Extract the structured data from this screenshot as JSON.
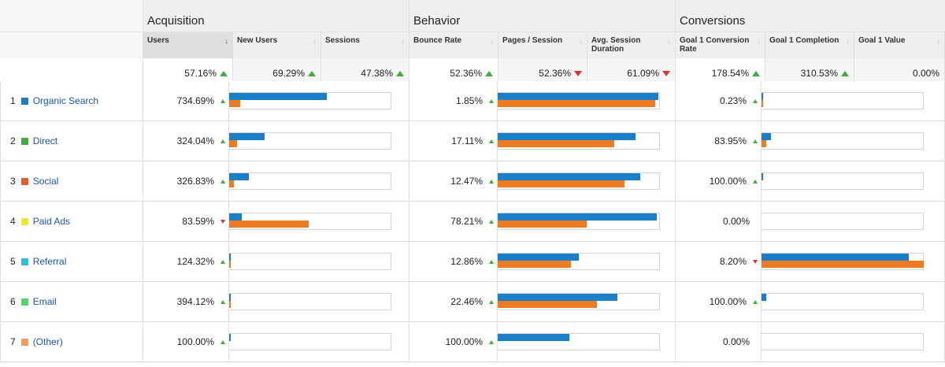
{
  "groups": [
    "",
    "Acquisition",
    "Behavior",
    "Conversions"
  ],
  "columns": [
    {
      "label": "Users",
      "sorted": true,
      "sort_icon": "sort-desc-icon"
    },
    {
      "label": "New Users",
      "sorted": false,
      "sort_icon": "sort-icon"
    },
    {
      "label": "Sessions",
      "sorted": false,
      "sort_icon": "sort-icon"
    },
    {
      "label": "Bounce Rate",
      "sorted": false,
      "sort_icon": "sort-icon"
    },
    {
      "label": "Pages / Session",
      "sorted": false,
      "sort_icon": "sort-icon"
    },
    {
      "label": "Avg. Session Duration",
      "sorted": false,
      "sort_icon": "sort-icon"
    },
    {
      "label": "Goal 1 Conversion Rate",
      "sorted": false,
      "sort_icon": "sort-icon"
    },
    {
      "label": "Goal 1 Completion",
      "sorted": false,
      "sort_icon": "sort-icon"
    },
    {
      "label": "Goal 1 Value",
      "sorted": false,
      "sort_icon": "sort-icon"
    }
  ],
  "totals": [
    {
      "value": "57.16%",
      "trend": "up"
    },
    {
      "value": "69.29%",
      "trend": "up"
    },
    {
      "value": "47.38%",
      "trend": "up"
    },
    {
      "value": "52.36%",
      "trend": "up"
    },
    {
      "value": "52.36%",
      "trend": "down"
    },
    {
      "value": "61.09%",
      "trend": "down"
    },
    {
      "value": "178.54%",
      "trend": "up"
    },
    {
      "value": "310.53%",
      "trend": "up"
    },
    {
      "value": "0.00%",
      "trend": ""
    }
  ],
  "colors": {
    "blue_bar": "#1a7fc7",
    "orange_bar": "#ef7b23",
    "up": "#3eae3e",
    "down": "#e23434",
    "link": "#1a55b8"
  },
  "rows": [
    {
      "index": "1",
      "channel": "Organic Search",
      "swatch": "#1a7fc7",
      "acq": {
        "value": "734.69%",
        "trend": "up",
        "blue": 0.6,
        "orange": 0.07
      },
      "beh": {
        "value": "1.85%",
        "trend": "up",
        "blue": 0.99,
        "orange": 0.97
      },
      "conv": {
        "value": "0.23%",
        "trend": "up",
        "blue": 0.01,
        "orange": 0.01
      }
    },
    {
      "index": "2",
      "channel": "Direct",
      "swatch": "#3eae3e",
      "acq": {
        "value": "324.04%",
        "trend": "up",
        "blue": 0.22,
        "orange": 0.05
      },
      "beh": {
        "value": "17.11%",
        "trend": "up",
        "blue": 0.85,
        "orange": 0.72
      },
      "conv": {
        "value": "83.95%",
        "trend": "up",
        "blue": 0.06,
        "orange": 0.03
      }
    },
    {
      "index": "3",
      "channel": "Social",
      "swatch": "#ef5a23",
      "acq": {
        "value": "326.83%",
        "trend": "up",
        "blue": 0.12,
        "orange": 0.03
      },
      "beh": {
        "value": "12.47%",
        "trend": "up",
        "blue": 0.88,
        "orange": 0.78
      },
      "conv": {
        "value": "100.00%",
        "trend": "up",
        "blue": 0.01,
        "orange": 0.0
      }
    },
    {
      "index": "4",
      "channel": "Paid Ads",
      "swatch": "#f0e81a",
      "acq": {
        "value": "83.59%",
        "trend": "down",
        "blue": 0.08,
        "orange": 0.49
      },
      "beh": {
        "value": "78.21%",
        "trend": "up",
        "blue": 0.98,
        "orange": 0.55
      },
      "conv": {
        "value": "0.00%",
        "trend": "",
        "blue": 0.0,
        "orange": 0.0
      }
    },
    {
      "index": "5",
      "channel": "Referral",
      "swatch": "#22c4d8",
      "acq": {
        "value": "124.32%",
        "trend": "up",
        "blue": 0.01,
        "orange": 0.01
      },
      "beh": {
        "value": "12.86%",
        "trend": "up",
        "blue": 0.5,
        "orange": 0.45
      },
      "conv": {
        "value": "8.20%",
        "trend": "down",
        "blue": 0.91,
        "orange": 1.0
      }
    },
    {
      "index": "6",
      "channel": "Email",
      "swatch": "#4fd86a",
      "acq": {
        "value": "394.12%",
        "trend": "up",
        "blue": 0.01,
        "orange": 0.01
      },
      "beh": {
        "value": "22.46%",
        "trend": "up",
        "blue": 0.74,
        "orange": 0.61
      },
      "conv": {
        "value": "100.00%",
        "trend": "up",
        "blue": 0.03,
        "orange": 0.0
      }
    },
    {
      "index": "7",
      "channel": "(Other)",
      "swatch": "#f59a5a",
      "acq": {
        "value": "100.00%",
        "trend": "up",
        "blue": 0.01,
        "orange": 0.0
      },
      "beh": {
        "value": "100.00%",
        "trend": "up",
        "blue": 0.44,
        "orange": 0.0
      },
      "conv": {
        "value": "0.00%",
        "trend": "",
        "blue": 0.0,
        "orange": 0.0
      }
    }
  ]
}
